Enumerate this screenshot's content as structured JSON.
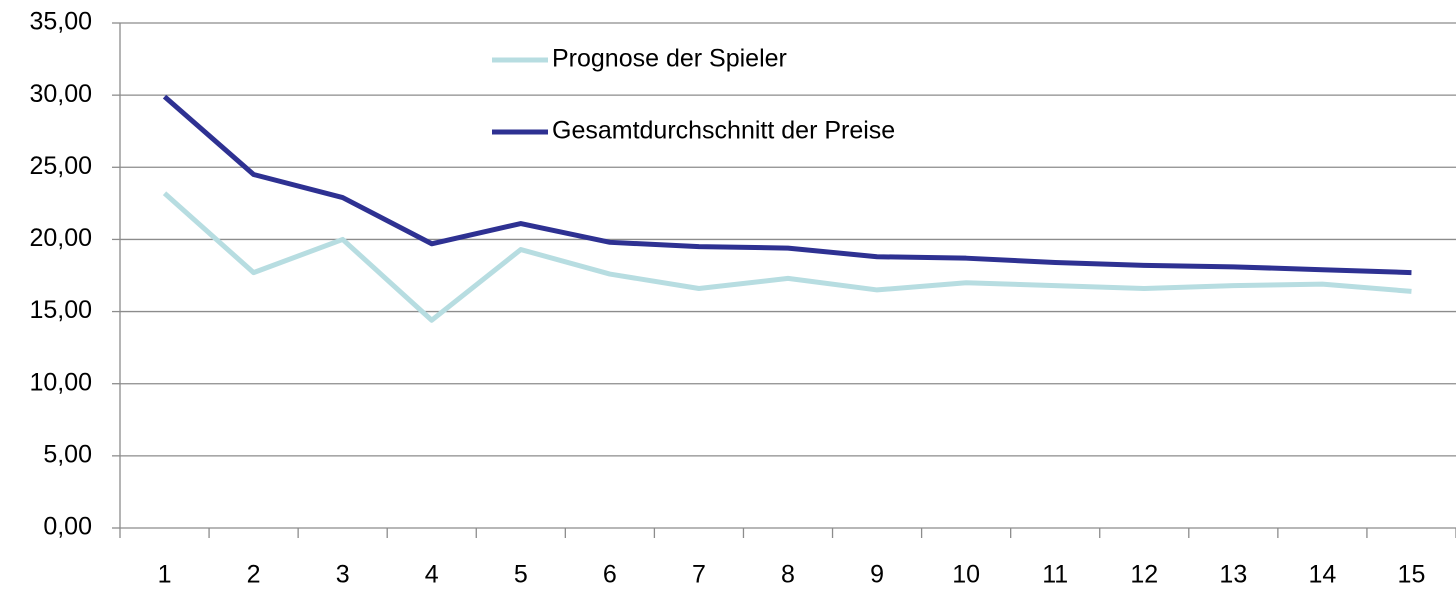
{
  "chart_data": {
    "type": "line",
    "categories": [
      "1",
      "2",
      "3",
      "4",
      "5",
      "6",
      "7",
      "8",
      "9",
      "10",
      "11",
      "12",
      "13",
      "14",
      "15"
    ],
    "series": [
      {
        "name": "Prognose der Spieler",
        "color": "#b7dde1",
        "values": [
          23.2,
          17.7,
          20.0,
          14.4,
          19.3,
          17.6,
          16.6,
          17.3,
          16.5,
          17.0,
          16.8,
          16.6,
          16.8,
          16.9,
          16.4
        ]
      },
      {
        "name": "Gesamtdurchschnitt der Preise",
        "color": "#2e3192",
        "values": [
          29.9,
          24.5,
          22.9,
          19.7,
          21.1,
          19.8,
          19.5,
          19.4,
          18.8,
          18.7,
          18.4,
          18.2,
          18.1,
          17.9,
          17.7
        ]
      }
    ],
    "ylim": [
      0,
      35
    ],
    "yticks": [
      {
        "value": 0,
        "label": "0,00"
      },
      {
        "value": 5,
        "label": "5,00"
      },
      {
        "value": 10,
        "label": "10,00"
      },
      {
        "value": 15,
        "label": "15,00"
      },
      {
        "value": 20,
        "label": "20,00"
      },
      {
        "value": 25,
        "label": "25,00"
      },
      {
        "value": 30,
        "label": "30,00"
      },
      {
        "value": 35,
        "label": "35,00"
      }
    ],
    "grid": true
  }
}
